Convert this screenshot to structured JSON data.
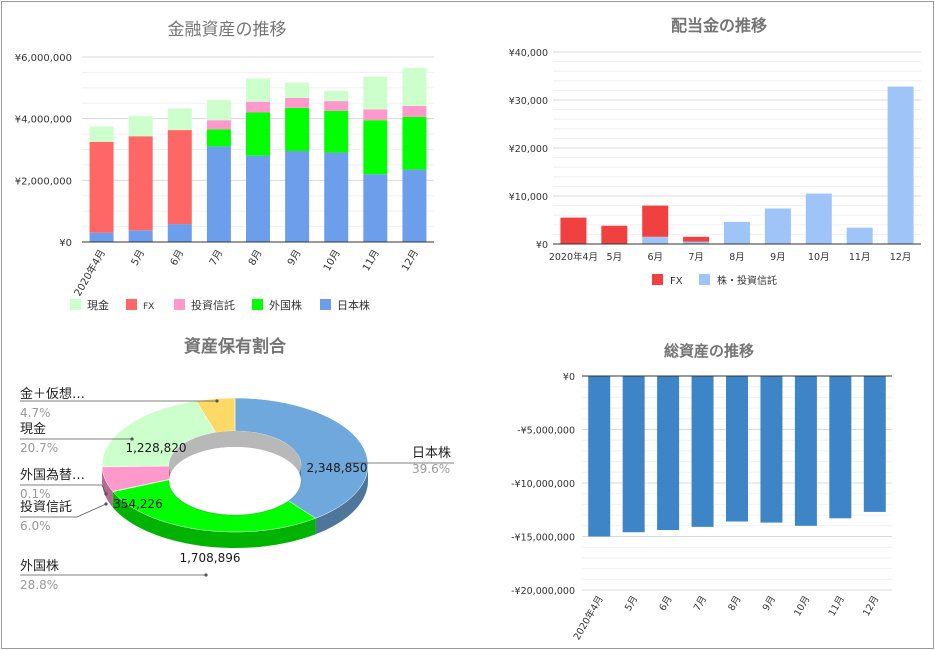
{
  "chart_data": [
    {
      "type": "bar",
      "stacked": true,
      "title": "金融資産の推移",
      "categories": [
        "2020年4月",
        "5月",
        "6月",
        "7月",
        "8月",
        "9月",
        "10月",
        "11月",
        "12月"
      ],
      "series": [
        {
          "name": "日本株",
          "color": "#6d9eeb",
          "values": [
            300000,
            380000,
            580000,
            3100000,
            2800000,
            2950000,
            2900000,
            2200000,
            2348850
          ]
        },
        {
          "name": "外国株",
          "color": "#00ff00",
          "values": [
            0,
            0,
            0,
            550000,
            1400000,
            1400000,
            1350000,
            1750000,
            1708896
          ]
        },
        {
          "name": "投資信託",
          "color": "#ff99cc",
          "values": [
            0,
            0,
            0,
            300000,
            350000,
            320000,
            320000,
            350000,
            354226
          ]
        },
        {
          "name": "FX",
          "color": "#ff6666",
          "values": [
            2950000,
            3050000,
            3050000,
            0,
            0,
            0,
            0,
            0,
            0
          ]
        },
        {
          "name": "現金",
          "color": "#ccffcc",
          "values": [
            500000,
            650000,
            700000,
            650000,
            750000,
            500000,
            330000,
            1060000,
            1228820
          ]
        }
      ],
      "legend_order": [
        "現金",
        "FX",
        "投資信託",
        "外国株",
        "日本株"
      ],
      "y_ticks": [
        "¥0",
        "¥2,000,000",
        "¥4,000,000",
        "¥6,000,000"
      ],
      "ylim": [
        0,
        6000000
      ],
      "legend": "bottom"
    },
    {
      "type": "bar",
      "stacked": true,
      "title": "配当金の推移",
      "categories": [
        "2020年4月",
        "5月",
        "6月",
        "7月",
        "8月",
        "9月",
        "10月",
        "11月",
        "12月"
      ],
      "series": [
        {
          "name": "株・投資信託",
          "color": "#9fc5f8",
          "values": [
            0,
            0,
            1500,
            500,
            4600,
            7400,
            10500,
            3400,
            32800
          ]
        },
        {
          "name": "FX",
          "color": "#f04040",
          "values": [
            5500,
            3800,
            6500,
            1000,
            0,
            0,
            0,
            0,
            0
          ]
        }
      ],
      "legend_order": [
        "FX",
        "株・投資信託"
      ],
      "y_ticks": [
        "¥0",
        "¥10,000",
        "¥20,000",
        "¥30,000",
        "¥40,000"
      ],
      "ylim": [
        0,
        40000
      ],
      "legend": "bottom"
    },
    {
      "type": "pie",
      "donut": true,
      "title": "資産保有割合",
      "slices": [
        {
          "name": "日本株",
          "value": 2348850,
          "percent": "39.6%",
          "value_label": "2,348,850",
          "color": "#6fa8dc"
        },
        {
          "name": "外国株",
          "value": 1708896,
          "percent": "28.8%",
          "value_label": "1,708,896",
          "color": "#00ff00"
        },
        {
          "name": "外国為替…",
          "value": 6000,
          "percent": "0.1%",
          "value_label": "",
          "color": "#e06666"
        },
        {
          "name": "投資信託",
          "value": 354226,
          "percent": "6.0%",
          "value_label": "354,226",
          "color": "#ff99cc"
        },
        {
          "name": "現金",
          "value": 1228820,
          "percent": "20.7%",
          "value_label": "1,228,820",
          "color": "#ccffcc"
        },
        {
          "name": "金＋仮想…",
          "value": 279000,
          "percent": "4.7%",
          "value_label": "",
          "color": "#ffd966"
        }
      ]
    },
    {
      "type": "bar",
      "title": "総資産の推移",
      "categories": [
        "2020年4月",
        "5月",
        "6月",
        "7月",
        "8月",
        "9月",
        "10月",
        "11月",
        "12月"
      ],
      "values": [
        -15000000,
        -14600000,
        -14400000,
        -14100000,
        -13600000,
        -13700000,
        -14000000,
        -13300000,
        -12700000
      ],
      "color": "#3d85c6",
      "y_ticks": [
        "¥0",
        "-¥5,000,000",
        "-¥10,000,000",
        "-¥15,000,000",
        "-¥20,000,000"
      ],
      "ylim": [
        -20000000,
        0
      ]
    }
  ]
}
